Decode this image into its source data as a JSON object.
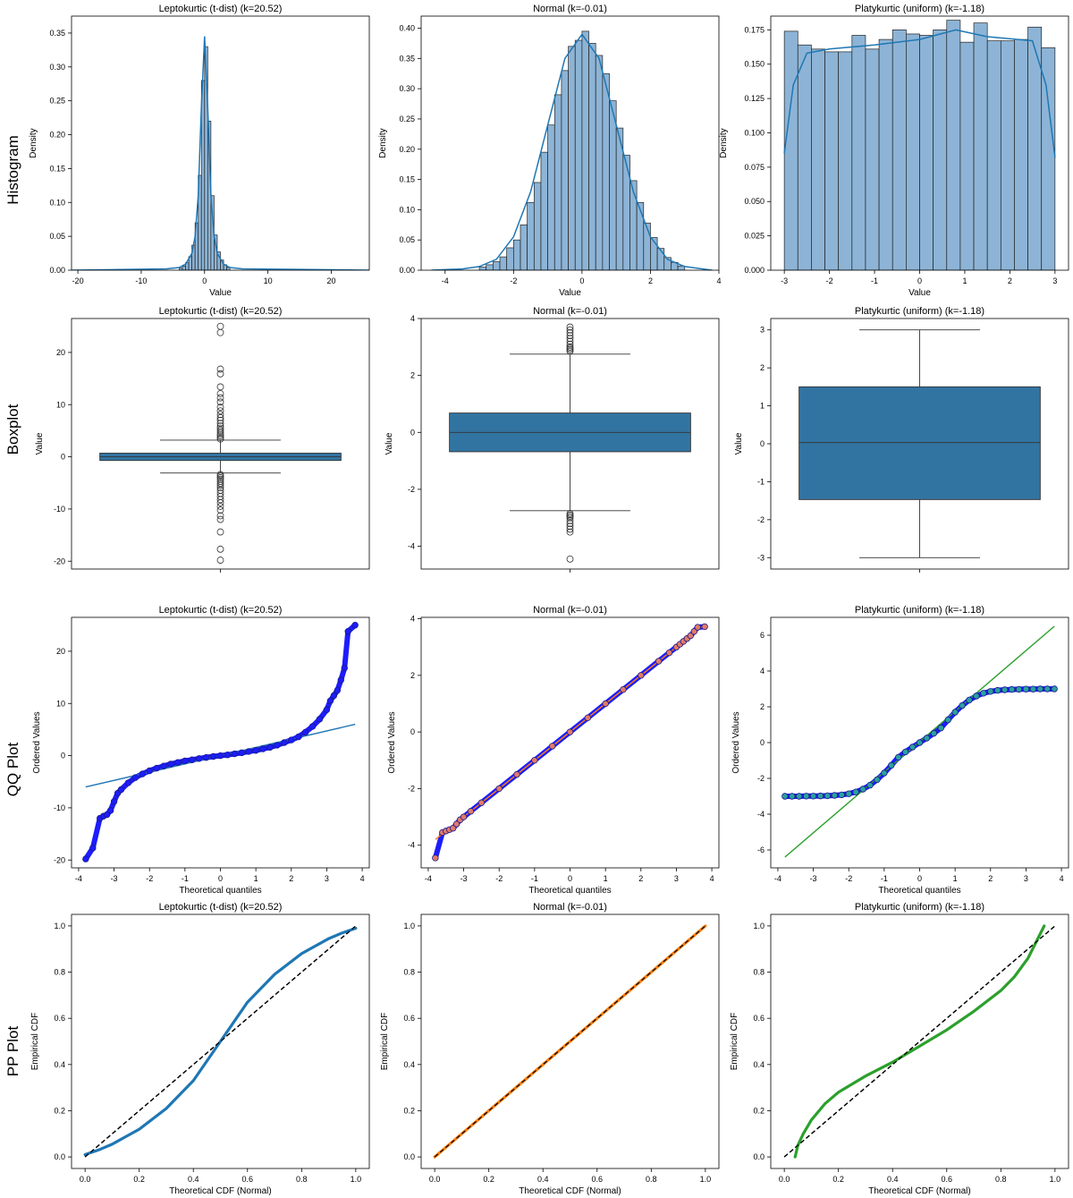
{
  "figure": {
    "row_labels": [
      "Histogram",
      "Boxplot",
      "QQ Plot",
      "PP Plot"
    ],
    "column_titles": [
      "Leptokurtic (t-dist) (k=20.52)",
      "Normal (k=-0.01)",
      "Platykurtic (uniform) (k=-1.18)"
    ],
    "colors": {
      "steelblue": "#1f77b4",
      "box": "#3274a1",
      "hist_fill": "#8db4d6",
      "qq_points": "#1d1dff",
      "normal_fit": "#ff7f0e",
      "uniform_fit": "#2ca02c",
      "diag": "#000000"
    }
  },
  "chart_data": [
    {
      "id": "hist-lepto",
      "type": "bar",
      "title": "Leptokurtic (t-dist) (k=20.52)",
      "xlabel": "Value",
      "ylabel": "Density",
      "xlim": [
        -21,
        26
      ],
      "ylim": [
        0,
        0.375
      ],
      "xticks": [
        -20,
        -10,
        0,
        10,
        20
      ],
      "xtick_labels": [
        "-20",
        "-10",
        "0",
        "10",
        "20"
      ],
      "yticks": [
        0,
        0.05,
        0.1,
        0.15,
        0.2,
        0.25,
        0.3,
        0.35
      ],
      "ytick_labels": [
        "0.00",
        "0.05",
        "0.10",
        "0.15",
        "0.20",
        "0.25",
        "0.30",
        "0.35"
      ],
      "bins": {
        "x": [
          -4,
          -3.5,
          -3,
          -2.5,
          -2,
          -1.5,
          -1,
          -0.5,
          0,
          0.5,
          1,
          1.5,
          2,
          2.5,
          3,
          3.5
        ],
        "width": 0.5,
        "values": [
          0.003,
          0.006,
          0.011,
          0.02,
          0.037,
          0.07,
          0.14,
          0.28,
          0.33,
          0.22,
          0.11,
          0.052,
          0.027,
          0.015,
          0.008,
          0.004
        ]
      },
      "kde": {
        "x": [
          -21,
          -6,
          -4,
          -3,
          -2,
          -1.5,
          -1,
          -0.5,
          0,
          0.5,
          1,
          1.5,
          2,
          3,
          4,
          6,
          26
        ],
        "y": [
          0,
          0.002,
          0.004,
          0.009,
          0.025,
          0.05,
          0.11,
          0.24,
          0.345,
          0.24,
          0.11,
          0.05,
          0.025,
          0.009,
          0.004,
          0.002,
          0
        ]
      }
    },
    {
      "id": "hist-normal",
      "type": "bar",
      "title": "Normal (k=-0.01)",
      "xlabel": "Value",
      "ylabel": "Density",
      "xlim": [
        -4.7,
        4.0
      ],
      "ylim": [
        0,
        0.42
      ],
      "xticks": [
        -4,
        -2,
        0,
        2,
        4
      ],
      "xtick_labels": [
        "-4",
        "-2",
        "0",
        "2",
        "4"
      ],
      "yticks": [
        0,
        0.05,
        0.1,
        0.15,
        0.2,
        0.25,
        0.3,
        0.35,
        0.4
      ],
      "ytick_labels": [
        "0.00",
        "0.05",
        "0.10",
        "0.15",
        "0.20",
        "0.25",
        "0.30",
        "0.35",
        "0.40"
      ],
      "bins": {
        "x": [
          -3.0,
          -2.8,
          -2.6,
          -2.4,
          -2.2,
          -2.0,
          -1.8,
          -1.6,
          -1.4,
          -1.2,
          -1.0,
          -0.8,
          -0.6,
          -0.4,
          -0.2,
          0.0,
          0.2,
          0.4,
          0.6,
          0.8,
          1.0,
          1.2,
          1.4,
          1.6,
          1.8,
          2.0,
          2.2,
          2.4,
          2.6,
          2.8
        ],
        "width": 0.2,
        "values": [
          0.005,
          0.009,
          0.014,
          0.022,
          0.037,
          0.05,
          0.075,
          0.112,
          0.145,
          0.195,
          0.24,
          0.29,
          0.33,
          0.37,
          0.38,
          0.395,
          0.375,
          0.355,
          0.325,
          0.28,
          0.235,
          0.19,
          0.148,
          0.112,
          0.078,
          0.054,
          0.036,
          0.021,
          0.013,
          0.007
        ]
      },
      "kde": {
        "x": [
          -4.4,
          -3.5,
          -3,
          -2.5,
          -2,
          -1.5,
          -1,
          -0.5,
          0,
          0.5,
          1,
          1.5,
          2,
          2.5,
          3,
          3.8
        ],
        "y": [
          0,
          0.002,
          0.006,
          0.018,
          0.055,
          0.13,
          0.24,
          0.35,
          0.39,
          0.35,
          0.24,
          0.13,
          0.055,
          0.018,
          0.006,
          0
        ]
      }
    },
    {
      "id": "hist-uniform",
      "type": "bar",
      "title": "Platykurtic (uniform) (k=-1.18)",
      "xlabel": "Value",
      "ylabel": "Density",
      "xlim": [
        -3.3,
        3.3
      ],
      "ylim": [
        0,
        0.185
      ],
      "xticks": [
        -3,
        -2,
        -1,
        0,
        1,
        2,
        3
      ],
      "xtick_labels": [
        "-3",
        "-2",
        "-1",
        "0",
        "1",
        "2",
        "3"
      ],
      "yticks": [
        0,
        0.025,
        0.05,
        0.075,
        0.1,
        0.125,
        0.15,
        0.175
      ],
      "ytick_labels": [
        "0.000",
        "0.025",
        "0.050",
        "0.075",
        "0.100",
        "0.125",
        "0.150",
        "0.175"
      ],
      "bins": {
        "x": [
          -3,
          -2.7,
          -2.4,
          -2.1,
          -1.8,
          -1.5,
          -1.2,
          -0.9,
          -0.6,
          -0.3,
          0,
          0.3,
          0.6,
          0.9,
          1.2,
          1.5,
          1.8,
          2.1,
          2.4,
          2.7
        ],
        "width": 0.3,
        "values": [
          0.174,
          0.164,
          0.161,
          0.159,
          0.159,
          0.171,
          0.161,
          0.168,
          0.175,
          0.172,
          0.171,
          0.175,
          0.182,
          0.166,
          0.18,
          0.167,
          0.167,
          0.168,
          0.177,
          0.162
        ]
      },
      "kde": {
        "x": [
          -3,
          -2.8,
          -2.5,
          -2,
          -1,
          0,
          0.8,
          1.5,
          2.5,
          2.8,
          3
        ],
        "y": [
          0.085,
          0.135,
          0.158,
          0.161,
          0.164,
          0.168,
          0.175,
          0.17,
          0.167,
          0.135,
          0.082
        ]
      }
    },
    {
      "id": "box-lepto",
      "type": "box",
      "title": "Leptokurtic (t-dist) (k=20.52)",
      "ylabel": "Value",
      "ylim": [
        -21.5,
        26.5
      ],
      "yticks": [
        -20,
        -10,
        0,
        10,
        20
      ],
      "ytick_labels": [
        "-20",
        "-10",
        "0",
        "10",
        "20"
      ],
      "stats": {
        "q1": -0.7,
        "median": 0,
        "q3": 0.7,
        "whislo": -3.1,
        "whishi": 3.2
      },
      "fliers": [
        25,
        23.8,
        16.8,
        15.9,
        13.4,
        12.1,
        11.3,
        10.5,
        9.5,
        8.8,
        8.1,
        7.5,
        7,
        6.4,
        5.9,
        5.5,
        5.1,
        4.7,
        4.3,
        4,
        3.7,
        3.4,
        -3.4,
        -3.7,
        -4,
        -4.3,
        -4.7,
        -5.1,
        -5.5,
        -5.9,
        -6.4,
        -7,
        -7.6,
        -8.2,
        -8.8,
        -9.5,
        -10.2,
        -11.3,
        -12,
        -14.4,
        -17.7,
        -19.8
      ]
    },
    {
      "id": "box-normal",
      "type": "box",
      "title": "Normal (k=-0.01)",
      "ylabel": "Value",
      "ylim": [
        -4.8,
        4.0
      ],
      "yticks": [
        -4,
        -2,
        0,
        2,
        4
      ],
      "ytick_labels": [
        "-4",
        "-2",
        "0",
        "2",
        "4"
      ],
      "stats": {
        "q1": -0.68,
        "median": 0,
        "q3": 0.68,
        "whislo": -2.75,
        "whishi": 2.75
      },
      "fliers": [
        3.7,
        3.6,
        3.5,
        3.4,
        3.3,
        3.2,
        3.1,
        3.0,
        2.95,
        2.9,
        2.85,
        -2.85,
        -2.9,
        -2.95,
        -3.0,
        -3.1,
        -3.2,
        -3.3,
        -3.4,
        -3.5,
        -4.45
      ]
    },
    {
      "id": "box-uniform",
      "type": "box",
      "title": "Platykurtic (uniform) (k=-1.18)",
      "ylabel": "Value",
      "ylim": [
        -3.3,
        3.3
      ],
      "yticks": [
        -3,
        -2,
        -1,
        0,
        1,
        2,
        3
      ],
      "ytick_labels": [
        "-3",
        "-2",
        "-1",
        "0",
        "1",
        "2",
        "3"
      ],
      "stats": {
        "q1": -1.47,
        "median": 0.03,
        "q3": 1.5,
        "whislo": -3.0,
        "whishi": 3.0
      },
      "fliers": []
    },
    {
      "id": "qq-lepto",
      "type": "scatter",
      "title": "Leptokurtic (t-dist) (k=20.52)",
      "xlabel": "Theoretical quantiles",
      "ylabel": "Ordered Values",
      "xlim": [
        -4.2,
        4.2
      ],
      "ylim": [
        -21.5,
        26.5
      ],
      "xticks": [
        -4,
        -3,
        -2,
        -1,
        0,
        1,
        2,
        3,
        4
      ],
      "xtick_labels": [
        "-4",
        "-3",
        "-2",
        "-1",
        "0",
        "1",
        "2",
        "3",
        "4"
      ],
      "yticks": [
        -20,
        -10,
        0,
        10,
        20
      ],
      "ytick_labels": [
        "-20",
        "-10",
        "0",
        "10",
        "20"
      ],
      "points": {
        "x": [
          -3.8,
          -3.6,
          -3.4,
          -3.3,
          -3.2,
          -3.1,
          -3.0,
          -2.9,
          -2.8,
          -2.6,
          -2.4,
          -2.2,
          -2.0,
          -1.8,
          -1.6,
          -1.4,
          -1.2,
          -1.0,
          -0.8,
          -0.6,
          -0.4,
          -0.2,
          0.0,
          0.2,
          0.4,
          0.6,
          0.8,
          1.0,
          1.2,
          1.4,
          1.6,
          1.8,
          2.0,
          2.2,
          2.4,
          2.6,
          2.8,
          3.0,
          3.1,
          3.2,
          3.3,
          3.4,
          3.5,
          3.6,
          3.8
        ],
        "y": [
          -19.8,
          -17.7,
          -12,
          -11.6,
          -11.3,
          -10.5,
          -8.8,
          -7.2,
          -6.5,
          -5.2,
          -4.2,
          -3.5,
          -2.9,
          -2.4,
          -2.0,
          -1.6,
          -1.3,
          -1.0,
          -0.8,
          -0.55,
          -0.35,
          -0.15,
          0,
          0.15,
          0.35,
          0.55,
          0.8,
          1.0,
          1.3,
          1.6,
          2.0,
          2.5,
          3.0,
          3.6,
          4.5,
          5.6,
          7.0,
          8.8,
          10.5,
          11.5,
          12.5,
          14.5,
          16.8,
          23.8,
          25.0
        ]
      },
      "fit_line": {
        "x": [
          -3.8,
          3.8
        ],
        "y": [
          -6.0,
          6.0
        ]
      }
    },
    {
      "id": "qq-normal",
      "type": "scatter",
      "title": "Normal (k=-0.01)",
      "xlabel": "Theoretical quantiles",
      "ylabel": "Ordered Values",
      "xlim": [
        -4.2,
        4.2
      ],
      "ylim": [
        -4.8,
        4.05
      ],
      "xticks": [
        -4,
        -3,
        -2,
        -1,
        0,
        1,
        2,
        3,
        4
      ],
      "xtick_labels": [
        "-4",
        "-3",
        "-2",
        "-1",
        "0",
        "1",
        "2",
        "3",
        "4"
      ],
      "yticks": [
        -4,
        -2,
        0,
        2,
        4
      ],
      "ytick_labels": [
        "-4",
        "-2",
        "0",
        "2",
        "4"
      ],
      "points": {
        "x": [
          -3.8,
          -3.6,
          -3.5,
          -3.4,
          -3.3,
          -3.2,
          -3.1,
          -3.0,
          -2.8,
          -2.5,
          -2.0,
          -1.5,
          -1.0,
          -0.5,
          0,
          0.5,
          1.0,
          1.5,
          2.0,
          2.5,
          2.8,
          3.0,
          3.1,
          3.2,
          3.3,
          3.4,
          3.5,
          3.6,
          3.8
        ],
        "y": [
          -4.45,
          -3.55,
          -3.5,
          -3.45,
          -3.4,
          -3.25,
          -3.1,
          -3.0,
          -2.8,
          -2.5,
          -2.0,
          -1.5,
          -1.0,
          -0.5,
          0,
          0.5,
          1.0,
          1.5,
          2.0,
          2.5,
          2.8,
          3.0,
          3.1,
          3.2,
          3.3,
          3.4,
          3.55,
          3.7,
          3.72
        ]
      },
      "fit_line": {
        "x": [
          -3.8,
          3.8
        ],
        "y": [
          -3.8,
          3.8
        ]
      }
    },
    {
      "id": "qq-uniform",
      "type": "scatter",
      "title": "Platykurtic (uniform) (k=-1.18)",
      "xlabel": "Theoretical quantiles",
      "ylabel": "Ordered Values",
      "xlim": [
        -4.2,
        4.2
      ],
      "ylim": [
        -7.0,
        7.0
      ],
      "xticks": [
        -4,
        -3,
        -2,
        -1,
        0,
        1,
        2,
        3,
        4
      ],
      "xtick_labels": [
        "-4",
        "-3",
        "-2",
        "-1",
        "0",
        "1",
        "2",
        "3",
        "4"
      ],
      "yticks": [
        -6,
        -4,
        -2,
        0,
        2,
        4,
        6
      ],
      "ytick_labels": [
        "-6",
        "-4",
        "-2",
        "0",
        "2",
        "4",
        "6"
      ],
      "points": {
        "x": [
          -3.8,
          -3.6,
          -3.4,
          -3.2,
          -3.0,
          -2.8,
          -2.6,
          -2.4,
          -2.2,
          -2.0,
          -1.8,
          -1.6,
          -1.4,
          -1.2,
          -1.0,
          -0.8,
          -0.6,
          -0.4,
          -0.2,
          0,
          0.2,
          0.4,
          0.6,
          0.8,
          1.0,
          1.2,
          1.4,
          1.6,
          1.8,
          2.0,
          2.2,
          2.4,
          2.6,
          2.8,
          3.0,
          3.2,
          3.4,
          3.6,
          3.8
        ],
        "y": [
          -3.0,
          -3.0,
          -3.0,
          -2.99,
          -2.99,
          -2.98,
          -2.97,
          -2.95,
          -2.92,
          -2.86,
          -2.76,
          -2.6,
          -2.38,
          -2.07,
          -1.7,
          -1.27,
          -0.82,
          -0.52,
          -0.25,
          0,
          0.25,
          0.52,
          0.82,
          1.27,
          1.7,
          2.07,
          2.38,
          2.6,
          2.76,
          2.86,
          2.92,
          2.95,
          2.97,
          2.98,
          2.99,
          2.99,
          3.0,
          3.0,
          3.0
        ]
      },
      "fit_line": {
        "x": [
          -3.8,
          3.8
        ],
        "y": [
          -6.4,
          6.5
        ]
      }
    },
    {
      "id": "pp-lepto",
      "type": "line",
      "title": "Leptokurtic (t-dist) (k=20.52)",
      "xlabel": "Theoretical CDF (Normal)",
      "ylabel": "Empirical CDF",
      "xlim": [
        -0.05,
        1.05
      ],
      "ylim": [
        -0.05,
        1.05
      ],
      "xticks": [
        0,
        0.2,
        0.4,
        0.6,
        0.8,
        1.0
      ],
      "xtick_labels": [
        "0.0",
        "0.2",
        "0.4",
        "0.6",
        "0.8",
        "1.0"
      ],
      "yticks": [
        0,
        0.2,
        0.4,
        0.6,
        0.8,
        1.0
      ],
      "ytick_labels": [
        "0.0",
        "0.2",
        "0.4",
        "0.6",
        "0.8",
        "1.0"
      ],
      "series": [
        {
          "x": [
            0,
            0.05,
            0.1,
            0.2,
            0.3,
            0.4,
            0.5,
            0.6,
            0.7,
            0.8,
            0.9,
            0.95,
            1.0
          ],
          "y": [
            0.01,
            0.03,
            0.055,
            0.12,
            0.21,
            0.33,
            0.5,
            0.67,
            0.79,
            0.88,
            0.945,
            0.97,
            0.99
          ],
          "color": "#1f77b4"
        }
      ],
      "diagonal": {
        "x": [
          0,
          1
        ],
        "y": [
          0,
          1
        ]
      }
    },
    {
      "id": "pp-normal",
      "type": "line",
      "title": "Normal (k=-0.01)",
      "xlabel": "Theoretical CDF (Normal)",
      "ylabel": "Empirical CDF",
      "xlim": [
        -0.05,
        1.05
      ],
      "ylim": [
        -0.05,
        1.05
      ],
      "xticks": [
        0,
        0.2,
        0.4,
        0.6,
        0.8,
        1.0
      ],
      "xtick_labels": [
        "0.0",
        "0.2",
        "0.4",
        "0.6",
        "0.8",
        "1.0"
      ],
      "yticks": [
        0,
        0.2,
        0.4,
        0.6,
        0.8,
        1.0
      ],
      "ytick_labels": [
        "0.0",
        "0.2",
        "0.4",
        "0.6",
        "0.8",
        "1.0"
      ],
      "series": [
        {
          "x": [
            0,
            0.25,
            0.5,
            0.75,
            1.0
          ],
          "y": [
            0,
            0.25,
            0.5,
            0.75,
            1.0
          ],
          "color": "#ff7f0e"
        }
      ],
      "diagonal": {
        "x": [
          0,
          1
        ],
        "y": [
          0,
          1
        ]
      }
    },
    {
      "id": "pp-uniform",
      "type": "line",
      "title": "Platykurtic (uniform) (k=-1.18)",
      "xlabel": "Theoretical CDF (Normal)",
      "ylabel": "Empirical CDF",
      "xlim": [
        -0.05,
        1.05
      ],
      "ylim": [
        -0.05,
        1.05
      ],
      "xticks": [
        0,
        0.2,
        0.4,
        0.6,
        0.8,
        1.0
      ],
      "xtick_labels": [
        "0.0",
        "0.2",
        "0.4",
        "0.6",
        "0.8",
        "1.0"
      ],
      "yticks": [
        0,
        0.2,
        0.4,
        0.6,
        0.8,
        1.0
      ],
      "ytick_labels": [
        "0.0",
        "0.2",
        "0.4",
        "0.6",
        "0.8",
        "1.0"
      ],
      "series": [
        {
          "x": [
            0.04,
            0.05,
            0.07,
            0.1,
            0.15,
            0.2,
            0.3,
            0.4,
            0.5,
            0.6,
            0.7,
            0.8,
            0.85,
            0.9,
            0.93,
            0.96
          ],
          "y": [
            0,
            0.05,
            0.1,
            0.16,
            0.23,
            0.28,
            0.35,
            0.41,
            0.48,
            0.55,
            0.63,
            0.72,
            0.78,
            0.86,
            0.93,
            1.0
          ],
          "color": "#2ca02c"
        }
      ],
      "diagonal": {
        "x": [
          0,
          1
        ],
        "y": [
          0,
          1
        ]
      }
    }
  ]
}
